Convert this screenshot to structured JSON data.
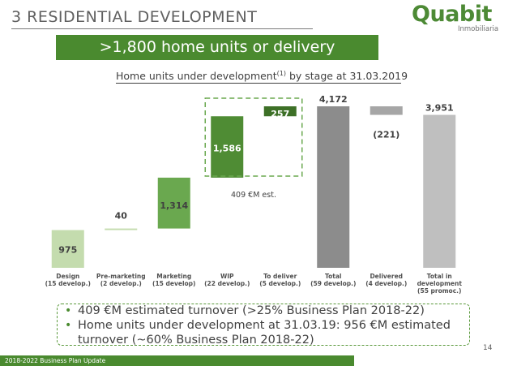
{
  "header": {
    "title": "3 RESIDENTIAL DEVELOPMENT",
    "logo_text": "Quabit",
    "logo_sub": "Inmobiliaria"
  },
  "banner": {
    "text": ">1,800 home units or delivery"
  },
  "subtitle": {
    "text": "Home units under development",
    "sup": "(1)",
    "suffix": " by stage at 31.03.2019"
  },
  "chart_data": {
    "type": "waterfall",
    "title": "Home units under development by stage at 31.03.2019",
    "categories": [
      {
        "name": "Design",
        "sub": "(15 develop.)"
      },
      {
        "name": "Pre-marketing",
        "sub": "(2 develop.)"
      },
      {
        "name": "Marketing",
        "sub": "(15 develop)"
      },
      {
        "name": "WIP",
        "sub": "(22 develop.)"
      },
      {
        "name": "To deliver",
        "sub": "(5 develop.)"
      },
      {
        "name": "Total",
        "sub": "(59 develop.)"
      },
      {
        "name": "Delivered",
        "sub": "(4 develop.)"
      },
      {
        "name": "Total in development",
        "sub": "(55 promoc.)"
      }
    ],
    "bars": [
      {
        "label": "975",
        "start": 0,
        "end": 975,
        "style": "light"
      },
      {
        "label": "40",
        "start": 975,
        "end": 1015,
        "style": "light"
      },
      {
        "label": "1,314",
        "start": 1015,
        "end": 2329,
        "style": "mid"
      },
      {
        "label": "1,586",
        "start": 2329,
        "end": 3915,
        "style": "dark"
      },
      {
        "label": "257",
        "start": 3915,
        "end": 4172,
        "style": "darkest"
      },
      {
        "label": "4,172",
        "start": 0,
        "end": 4172,
        "style": "total"
      },
      {
        "label": "(221)",
        "start": 3951,
        "end": 4172,
        "style": "neg"
      },
      {
        "label": "3,951",
        "start": 0,
        "end": 3951,
        "style": "lighttotal"
      }
    ],
    "annotation": "409 €M est.",
    "colors": {
      "light": "#c4dcae",
      "mid": "#6aa84f",
      "dark": "#4f8c34",
      "darkest": "#3d7027",
      "total": "#8c8c8c",
      "neg": "#a6a6a6",
      "lighttotal": "#bfbfbf",
      "text": "#404040",
      "white": "#ffffff"
    }
  },
  "bullets": [
    "409 €M estimated turnover (>25% Business Plan 2018-22)",
    "Home units under development at 31.03.19: 956 €M estimated turnover (~60% Business Plan 2018-22)"
  ],
  "page_number": "14",
  "footer": {
    "text": "2018-2022 Business Plan Update"
  }
}
